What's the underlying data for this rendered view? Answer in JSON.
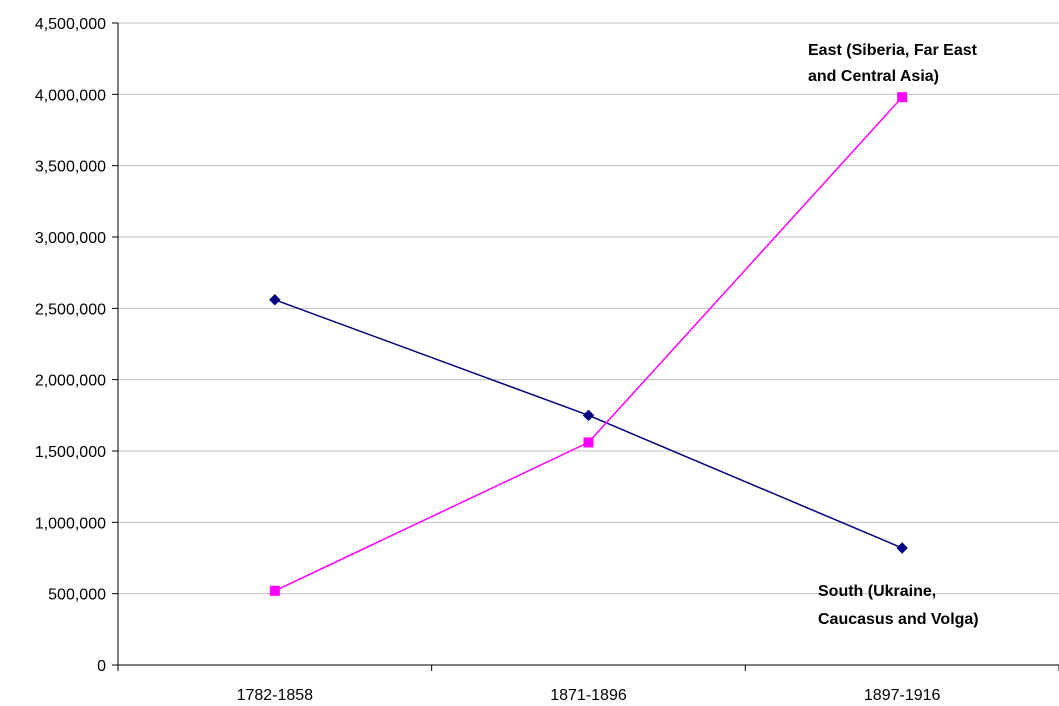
{
  "chart_data": {
    "type": "line",
    "title": "",
    "xlabel": "",
    "ylabel": "",
    "categories": [
      "1782-1858",
      "1871-1896",
      "1897-1916"
    ],
    "ylim": [
      0,
      4500000
    ],
    "y_ticks": [
      0,
      500000,
      1000000,
      1500000,
      2000000,
      2500000,
      3000000,
      3500000,
      4000000,
      4500000
    ],
    "y_tick_labels": [
      "0",
      "500,000",
      "1,000,000",
      "1,500,000",
      "2,000,000",
      "2,500,000",
      "3,000,000",
      "3,500,000",
      "4,000,000",
      "4,500,000"
    ],
    "grid": "horizontal",
    "series": [
      {
        "key": "south",
        "label_lines": [
          "South (Ukraine,",
          "Caucasus and Volga)"
        ],
        "color": "#000080",
        "marker": "diamond",
        "values": [
          2560000,
          1750000,
          820000
        ]
      },
      {
        "key": "east",
        "label_lines": [
          "East (Siberia, Far East",
          "and Central Asia)"
        ],
        "color": "#ff00ff",
        "marker": "square",
        "values": [
          520000,
          1560000,
          3980000
        ]
      }
    ]
  }
}
